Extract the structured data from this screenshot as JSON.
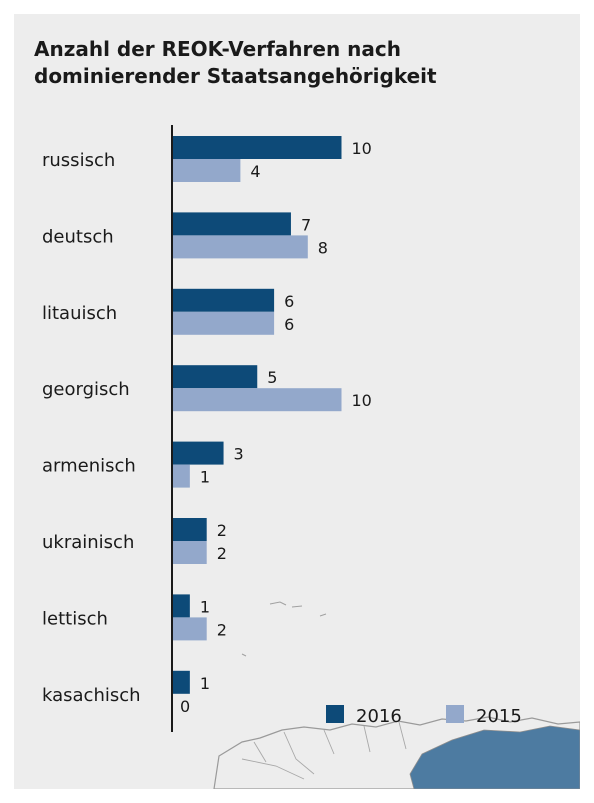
{
  "chart_data": {
    "type": "bar",
    "orientation": "horizontal",
    "title": "Anzahl der REOK-Verfahren nach dominierender Staatsangehörigkeit",
    "categories": [
      "russisch",
      "deutsch",
      "litauisch",
      "georgisch",
      "armenisch",
      "ukrainisch",
      "lettisch",
      "kasachisch"
    ],
    "series": [
      {
        "name": "2016",
        "color": "#0d4a78",
        "values": [
          10,
          7,
          6,
          5,
          3,
          2,
          1,
          1
        ]
      },
      {
        "name": "2015",
        "color": "#93a8cb",
        "values": [
          4,
          8,
          6,
          10,
          1,
          2,
          2,
          0
        ]
      }
    ],
    "xlim": [
      0,
      10
    ],
    "grid": false,
    "legend_position": "bottom-right",
    "data_labels": true
  },
  "colors": {
    "panel_background": "#ededed",
    "axis": "#1a1a1a",
    "map_water": "#4d7ba1"
  }
}
